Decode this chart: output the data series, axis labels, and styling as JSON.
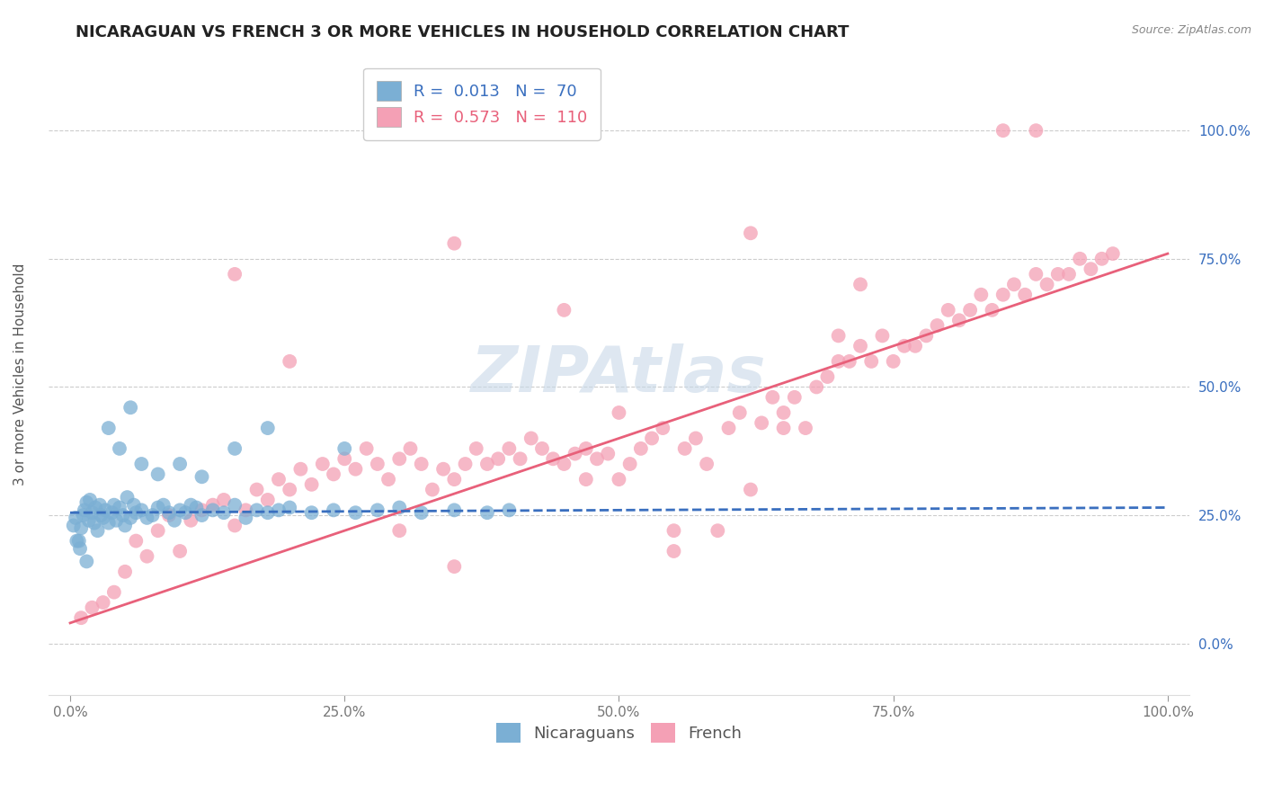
{
  "title": "NICARAGUAN VS FRENCH 3 OR MORE VEHICLES IN HOUSEHOLD CORRELATION CHART",
  "source_text": "Source: ZipAtlas.com",
  "ylabel": "3 or more Vehicles in Household",
  "watermark": "ZIPAtlas",
  "xlim": [
    -2.0,
    102.0
  ],
  "ylim": [
    -10.0,
    115.0
  ],
  "xticks": [
    0.0,
    25.0,
    50.0,
    75.0,
    100.0
  ],
  "yticks": [
    0.0,
    25.0,
    50.0,
    75.0,
    100.0
  ],
  "xtick_labels": [
    "0.0%",
    "25.0%",
    "50.0%",
    "75.0%",
    "100.0%"
  ],
  "ytick_labels": [
    "0.0%",
    "25.0%",
    "50.0%",
    "75.0%",
    "100.0%"
  ],
  "nicaraguan_color": "#7bafd4",
  "french_color": "#f4a0b5",
  "nicaraguan_line_color": "#3a6fbf",
  "french_line_color": "#e8607a",
  "nicaraguan_R": 0.013,
  "nicaraguan_N": 70,
  "french_R": 0.573,
  "french_N": 110,
  "grid_color": "#cccccc",
  "background_color": "#ffffff",
  "title_fontsize": 13,
  "axis_label_fontsize": 11,
  "tick_fontsize": 11,
  "legend_fontsize": 13,
  "watermark_fontsize": 52,
  "watermark_color": "#c8d8e8",
  "legend_label1": "Nicaraguans",
  "legend_label2": "French",
  "nic_line_x0": 0.0,
  "nic_line_x1": 100.0,
  "nic_line_y0": 25.5,
  "nic_line_y1": 26.5,
  "fr_line_x0": 0.0,
  "fr_line_x1": 100.0,
  "fr_line_y0": 4.0,
  "fr_line_y1": 76.0,
  "nicaraguan_scatter_x": [
    0.3,
    0.5,
    0.8,
    1.0,
    1.2,
    1.3,
    1.5,
    1.7,
    1.8,
    2.0,
    2.2,
    2.3,
    2.5,
    2.7,
    2.8,
    3.0,
    3.2,
    3.5,
    3.8,
    4.0,
    4.2,
    4.5,
    4.8,
    5.0,
    5.2,
    5.5,
    5.8,
    6.0,
    6.5,
    7.0,
    7.5,
    8.0,
    8.5,
    9.0,
    9.5,
    10.0,
    10.5,
    11.0,
    11.5,
    12.0,
    13.0,
    14.0,
    15.0,
    16.0,
    17.0,
    18.0,
    19.0,
    20.0,
    22.0,
    24.0,
    26.0,
    28.0,
    30.0,
    32.0,
    35.0,
    38.0,
    40.0,
    3.5,
    4.5,
    5.5,
    6.5,
    8.0,
    10.0,
    12.0,
    15.0,
    18.0,
    25.0,
    0.6,
    0.9,
    1.5
  ],
  "nicaraguan_scatter_y": [
    23.0,
    24.5,
    20.0,
    22.5,
    25.0,
    26.0,
    27.5,
    24.0,
    28.0,
    25.5,
    23.5,
    26.5,
    22.0,
    27.0,
    25.0,
    24.5,
    26.0,
    23.5,
    25.5,
    27.0,
    24.0,
    26.5,
    25.0,
    23.0,
    28.5,
    24.5,
    27.0,
    25.5,
    26.0,
    24.5,
    25.0,
    26.5,
    27.0,
    25.5,
    24.0,
    26.0,
    25.5,
    27.0,
    26.5,
    25.0,
    26.0,
    25.5,
    27.0,
    24.5,
    26.0,
    25.5,
    26.0,
    26.5,
    25.5,
    26.0,
    25.5,
    26.0,
    26.5,
    25.5,
    26.0,
    25.5,
    26.0,
    42.0,
    38.0,
    46.0,
    35.0,
    33.0,
    35.0,
    32.5,
    38.0,
    42.0,
    38.0,
    20.0,
    18.5,
    16.0
  ],
  "french_scatter_x": [
    1.0,
    2.0,
    3.0,
    4.0,
    5.0,
    6.0,
    7.0,
    8.0,
    9.0,
    10.0,
    11.0,
    12.0,
    13.0,
    14.0,
    15.0,
    16.0,
    17.0,
    18.0,
    19.0,
    20.0,
    21.0,
    22.0,
    23.0,
    24.0,
    25.0,
    26.0,
    27.0,
    28.0,
    29.0,
    30.0,
    31.0,
    32.0,
    33.0,
    34.0,
    35.0,
    36.0,
    37.0,
    38.0,
    39.0,
    40.0,
    41.0,
    42.0,
    43.0,
    44.0,
    45.0,
    46.0,
    47.0,
    48.0,
    49.0,
    50.0,
    51.0,
    52.0,
    53.0,
    54.0,
    55.0,
    56.0,
    57.0,
    58.0,
    59.0,
    60.0,
    61.0,
    62.0,
    63.0,
    64.0,
    65.0,
    66.0,
    67.0,
    68.0,
    69.0,
    70.0,
    71.0,
    72.0,
    73.0,
    74.0,
    75.0,
    76.0,
    77.0,
    78.0,
    79.0,
    80.0,
    81.0,
    82.0,
    83.0,
    84.0,
    85.0,
    86.0,
    87.0,
    88.0,
    89.0,
    90.0,
    91.0,
    92.0,
    93.0,
    94.0,
    95.0,
    65.0,
    70.0,
    72.0,
    85.0,
    88.0,
    50.0,
    47.0,
    35.0,
    55.0,
    45.0,
    62.0,
    35.0,
    30.0,
    20.0,
    15.0
  ],
  "french_scatter_y": [
    5.0,
    7.0,
    8.0,
    10.0,
    14.0,
    20.0,
    17.0,
    22.0,
    25.0,
    18.0,
    24.0,
    26.0,
    27.0,
    28.0,
    23.0,
    26.0,
    30.0,
    28.0,
    32.0,
    30.0,
    34.0,
    31.0,
    35.0,
    33.0,
    36.0,
    34.0,
    38.0,
    35.0,
    32.0,
    36.0,
    38.0,
    35.0,
    30.0,
    34.0,
    32.0,
    35.0,
    38.0,
    35.0,
    36.0,
    38.0,
    36.0,
    40.0,
    38.0,
    36.0,
    35.0,
    37.0,
    38.0,
    36.0,
    37.0,
    32.0,
    35.0,
    38.0,
    40.0,
    42.0,
    22.0,
    38.0,
    40.0,
    35.0,
    22.0,
    42.0,
    45.0,
    30.0,
    43.0,
    48.0,
    45.0,
    48.0,
    42.0,
    50.0,
    52.0,
    55.0,
    55.0,
    58.0,
    55.0,
    60.0,
    55.0,
    58.0,
    58.0,
    60.0,
    62.0,
    65.0,
    63.0,
    65.0,
    68.0,
    65.0,
    68.0,
    70.0,
    68.0,
    72.0,
    70.0,
    72.0,
    72.0,
    75.0,
    73.0,
    75.0,
    76.0,
    42.0,
    60.0,
    70.0,
    100.0,
    100.0,
    45.0,
    32.0,
    78.0,
    18.0,
    65.0,
    80.0,
    15.0,
    22.0,
    55.0,
    72.0
  ]
}
